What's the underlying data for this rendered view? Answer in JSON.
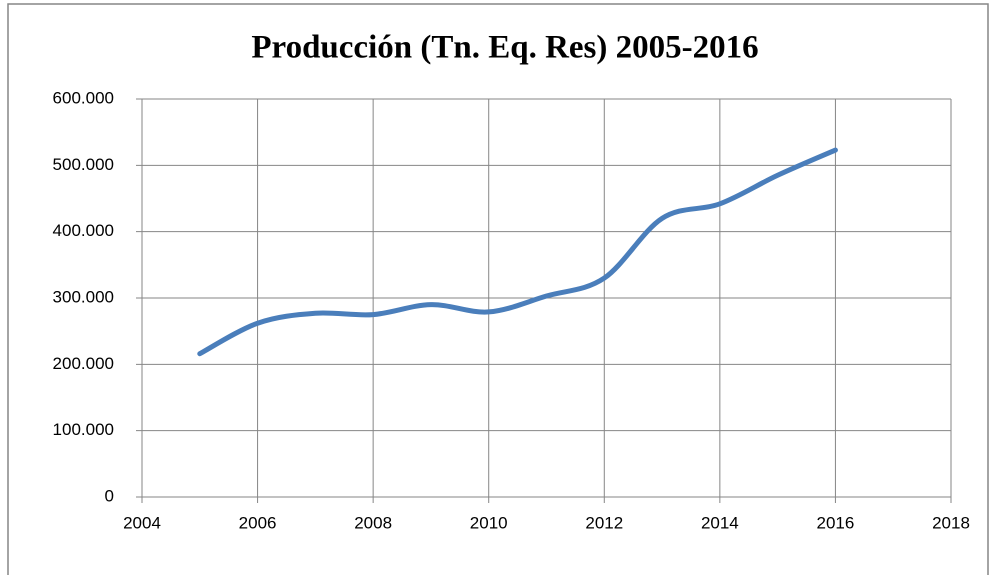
{
  "chart_data": {
    "type": "line",
    "title": "Producción (Tn. Eq. Res) 2005-2016",
    "x": [
      2005,
      2006,
      2007,
      2008,
      2009,
      2010,
      2011,
      2012,
      2013,
      2014,
      2015,
      2016
    ],
    "series": [
      {
        "name": "Producción",
        "color": "#4a7ebb",
        "values": [
          216000,
          262000,
          277000,
          275000,
          290000,
          279000,
          303000,
          330000,
          420000,
          442000,
          485000,
          523000
        ]
      }
    ],
    "xlim": [
      2004,
      2018
    ],
    "xticks": [
      2004,
      2006,
      2008,
      2010,
      2012,
      2014,
      2016,
      2018
    ],
    "ylim": [
      0,
      600000
    ],
    "yticks": [
      0,
      {
        "value": 100000,
        "label": "100.000"
      },
      {
        "value": 200000,
        "label": "200.000"
      },
      {
        "value": 300000,
        "label": "300.000"
      },
      {
        "value": 400000,
        "label": "400.000"
      },
      {
        "value": 500000,
        "label": "500.000"
      },
      {
        "value": 600000,
        "label": "600.000"
      }
    ],
    "grid": true,
    "smooth": true
  }
}
